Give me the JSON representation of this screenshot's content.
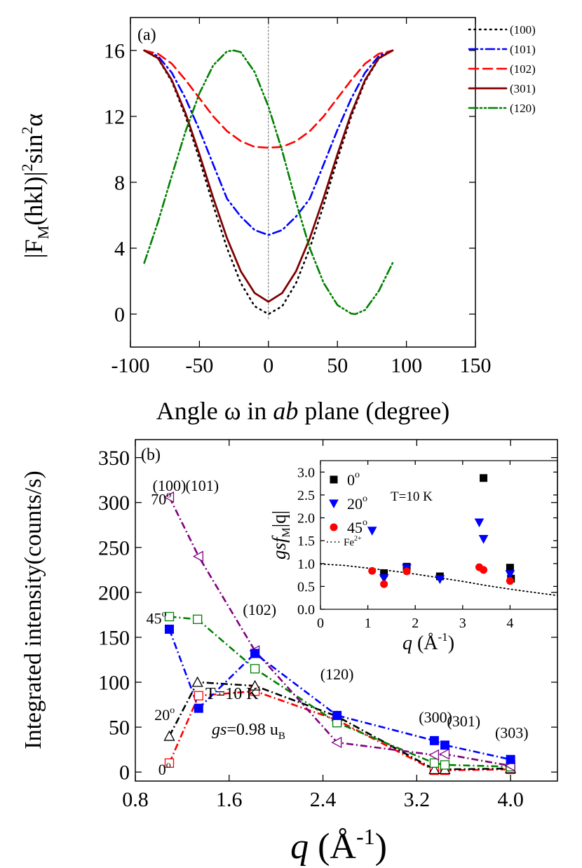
{
  "chart_data": [
    {
      "type": "line",
      "panel_label": "(a)",
      "xlabel_pre": "Angle ω in ",
      "xlabel_ital": "ab",
      "xlabel_post": " plane (degree)",
      "ylabel_main": "|F",
      "ylabel_sub": "M",
      "ylabel_mid": "(hkl)|",
      "ylabel_sup1": "2",
      "ylabel_end": "sin",
      "ylabel_sup2": "2",
      "ylabel_alpha": "α",
      "xlim": [
        -100,
        150
      ],
      "ylim": [
        -2,
        18
      ],
      "xticks": [
        -100,
        -50,
        0,
        50,
        100,
        150
      ],
      "yticks": [
        0,
        4,
        8,
        12,
        16
      ],
      "vline_x": 0,
      "legend_position": "top-right",
      "series": [
        {
          "name": "(100)",
          "color": "#000000",
          "dash": "1.5,6",
          "x": [
            -90,
            -80,
            -70,
            -60,
            -50,
            -40,
            -30,
            -20,
            -10,
            0,
            10,
            20,
            30,
            40,
            50,
            60,
            70,
            80,
            90
          ],
          "y": [
            16,
            15.51,
            14.12,
            12,
            9.39,
            6.61,
            4.0,
            1.88,
            0.48,
            0,
            0.48,
            1.88,
            4.0,
            6.61,
            9.39,
            12,
            14.12,
            15.51,
            16
          ]
        },
        {
          "name": "(101)",
          "color": "#0000ff",
          "dash": "12,5,2,5",
          "x": [
            -90,
            -80,
            -70,
            -60,
            -50,
            -40,
            -30,
            -20,
            -10,
            0,
            10,
            20,
            30,
            40,
            50,
            60,
            70,
            80,
            90
          ],
          "y": [
            16,
            15.66,
            14.65,
            13.08,
            11.18,
            9.08,
            7.0,
            5.92,
            5.1,
            4.8,
            5.1,
            5.92,
            7.0,
            9.08,
            11.18,
            13.08,
            14.65,
            15.66,
            16
          ]
        },
        {
          "name": "(102)",
          "color": "#ff0000",
          "dash": "13,7",
          "x": [
            -90,
            -80,
            -70,
            -60,
            -50,
            -40,
            -30,
            -20,
            -10,
            0,
            10,
            20,
            30,
            40,
            50,
            60,
            70,
            80,
            90
          ],
          "y": [
            16,
            15.8,
            15.2,
            14.2,
            13.1,
            12.0,
            11.1,
            10.5,
            10.15,
            10.1,
            10.15,
            10.5,
            11.1,
            12.0,
            13.1,
            14.2,
            15.2,
            15.8,
            16
          ]
        },
        {
          "name": "(301)",
          "color": "#800000",
          "dash": "",
          "x": [
            -90,
            -80,
            -70,
            -60,
            -50,
            -40,
            -30,
            -20,
            -10,
            0,
            10,
            20,
            30,
            40,
            50,
            60,
            70,
            80,
            90
          ],
          "y": [
            16,
            15.53,
            14.21,
            12.18,
            9.7,
            7.05,
            4.6,
            2.6,
            1.28,
            0.75,
            1.28,
            2.6,
            4.6,
            7.05,
            9.7,
            12.18,
            14.21,
            15.53,
            16
          ]
        },
        {
          "name": "(120)",
          "color": "#008000",
          "dash": "12,4,2,4,2,4",
          "x": [
            -90,
            -80,
            -70,
            -60,
            -50,
            -40,
            -30,
            -25,
            -20,
            -10,
            0,
            10,
            20,
            30,
            40,
            50,
            60,
            63,
            70,
            80,
            90
          ],
          "y": [
            3.1,
            5.6,
            8.4,
            11.1,
            13.4,
            15.1,
            15.95,
            16,
            15.9,
            14.7,
            12.6,
            9.9,
            6.8,
            4.0,
            1.9,
            0.55,
            0.03,
            0,
            0.25,
            1.4,
            3.1
          ]
        }
      ]
    },
    {
      "type": "line",
      "panel_label": "(b)",
      "xlabel_ital": "q",
      "xlabel_rest": " (Å",
      "xlabel_sup": "-1",
      "xlabel_close": ")",
      "ylabel": "Integrated intensity(counts/s)",
      "xlim": [
        0.8,
        4.4
      ],
      "ylim": [
        -10,
        370
      ],
      "xticks": [
        0.8,
        1.6,
        2.4,
        3.2,
        4.0
      ],
      "xtick_labels": [
        "0.8",
        "1.6",
        "2.4",
        "3.2",
        "4.0"
      ],
      "yticks": [
        0,
        50,
        100,
        150,
        200,
        250,
        300,
        350
      ],
      "peak_labels": [
        {
          "text": "(100)",
          "x": 1.09,
          "y": 313
        },
        {
          "text": "(101)",
          "x": 1.37,
          "y": 313
        },
        {
          "text": "(102)",
          "x": 1.86,
          "y": 175
        },
        {
          "text": "(120)",
          "x": 2.52,
          "y": 103
        },
        {
          "text": "(300)",
          "x": 3.36,
          "y": 55
        },
        {
          "text": "(301)",
          "x": 3.6,
          "y": 51
        },
        {
          "text": "(303)",
          "x": 4.01,
          "y": 38
        }
      ],
      "angle_labels": [
        {
          "base": "70",
          "sup": "o",
          "x": 1.02,
          "y": 298
        },
        {
          "base": "45",
          "sup": "o",
          "x": 0.98,
          "y": 165
        },
        {
          "base": "20",
          "sup": "o",
          "x": 1.05,
          "y": 58
        },
        {
          "base": "0",
          "sup": "o",
          "x": 1.05,
          "y": -3
        }
      ],
      "temperature_label": "T=10 K",
      "gs_label_ital": "gs",
      "gs_label_rest": "=0.98 u",
      "gs_label_sub": "B",
      "series": [
        {
          "name": "0°",
          "color": "#ff0000",
          "dash": "10,4,2,4",
          "marker": "open-square",
          "x": [
            1.09,
            1.34,
            1.82,
            2.52,
            3.35,
            3.44,
            4.0
          ],
          "y": [
            10,
            85,
            90,
            58,
            2,
            2,
            3
          ]
        },
        {
          "name": "20°",
          "color": "#000000",
          "dash": "10,4,2,4",
          "marker": "open-triangle",
          "x": [
            1.09,
            1.33,
            1.82,
            2.52,
            3.35,
            3.44,
            4.0
          ],
          "y": [
            40,
            100,
            96,
            62,
            3,
            3,
            4
          ]
        },
        {
          "name": "45°",
          "color": "#008000",
          "dash": "10,4,2,4",
          "marker": "open-square",
          "x": [
            1.09,
            1.33,
            1.82,
            2.52,
            3.35,
            3.44,
            4.0
          ],
          "y": [
            173,
            170,
            115,
            55,
            10,
            8,
            6
          ]
        },
        {
          "name": "70°",
          "color": "#800080",
          "dash": "10,4,2,4",
          "marker": "open-left-triangle",
          "x": [
            1.09,
            1.34,
            1.82,
            2.52,
            3.35,
            3.44,
            4.0
          ],
          "y": [
            306,
            240,
            135,
            33,
            19,
            20,
            7
          ]
        },
        {
          "name": "",
          "color": "#0000ff",
          "dash": "10,4,2,4",
          "marker": "filled-square",
          "x": [
            1.09,
            1.34,
            1.82,
            2.52,
            3.35,
            3.44,
            4.0
          ],
          "y": [
            159,
            71,
            132,
            63,
            35,
            30,
            14
          ]
        }
      ]
    },
    {
      "type": "scatter",
      "xlabel_ital": "q",
      "xlabel_rest": " (Å",
      "xlabel_sup": "-1",
      "xlabel_close": ")",
      "ylabel_ital": "gsf",
      "ylabel_sub": "M",
      "ylabel_rest": "|q|",
      "xlim": [
        0,
        5
      ],
      "ylim": [
        0,
        3.25
      ],
      "xticks": [
        0,
        1,
        2,
        3,
        4
      ],
      "yticks": [
        0.0,
        0.5,
        1.0,
        1.5,
        2.0,
        2.5,
        3.0
      ],
      "ytick_labels": [
        "0.0",
        "0.5",
        "1.0",
        "1.5",
        "2.0",
        "2.5",
        "3.0"
      ],
      "temperature_label": "T=10 K",
      "legend_position": "top-left",
      "series": [
        {
          "name_base": "0",
          "name_sup": "o",
          "color": "#000000",
          "marker": "filled-square",
          "x": [
            1.34,
            1.82,
            2.52,
            3.44,
            4.0,
            4.02
          ],
          "y": [
            0.79,
            0.93,
            0.72,
            2.87,
            0.91,
            0.67
          ]
        },
        {
          "name_base": "20",
          "name_sup": "o",
          "color": "#0000ff",
          "marker": "filled-down-triangle",
          "x": [
            1.09,
            1.34,
            1.82,
            2.52,
            3.35,
            3.44,
            4.0
          ],
          "y": [
            1.72,
            0.68,
            0.9,
            0.66,
            1.9,
            1.54,
            0.77
          ]
        },
        {
          "name_base": "45",
          "name_sup": "o",
          "color": "#ff0000",
          "marker": "filled-circle",
          "x": [
            1.09,
            1.34,
            1.82,
            3.35,
            3.44,
            4.0
          ],
          "y": [
            0.84,
            0.55,
            0.83,
            0.92,
            0.86,
            0.62
          ]
        }
      ],
      "reference_curve": {
        "name_base": "Fe",
        "name_sup": "2+",
        "color": "#000000",
        "dash": "1.5,4",
        "x": [
          0,
          0.5,
          1,
          1.5,
          2,
          2.5,
          3,
          3.5,
          4,
          4.5,
          5
        ],
        "y": [
          0.99,
          0.96,
          0.9,
          0.84,
          0.77,
          0.69,
          0.61,
          0.52,
          0.44,
          0.37,
          0.3
        ]
      }
    }
  ]
}
